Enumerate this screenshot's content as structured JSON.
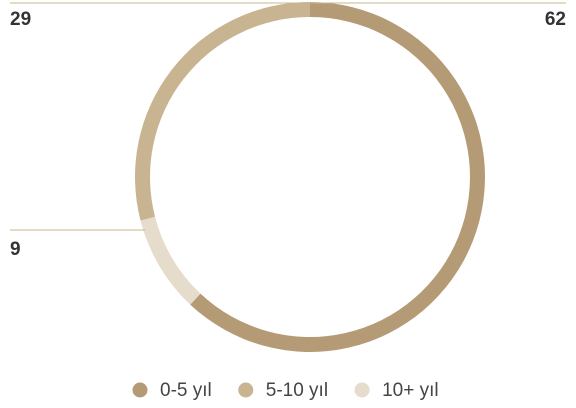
{
  "chart_data": {
    "type": "donut",
    "categories": [
      "0-5 yıl",
      "5-10 yıl",
      "10+ yıl"
    ],
    "values": [
      62,
      29,
      9
    ],
    "colors": [
      "#b59b75",
      "#c8b491",
      "#e6dccb"
    ],
    "order": [
      0,
      2,
      1
    ]
  }
}
